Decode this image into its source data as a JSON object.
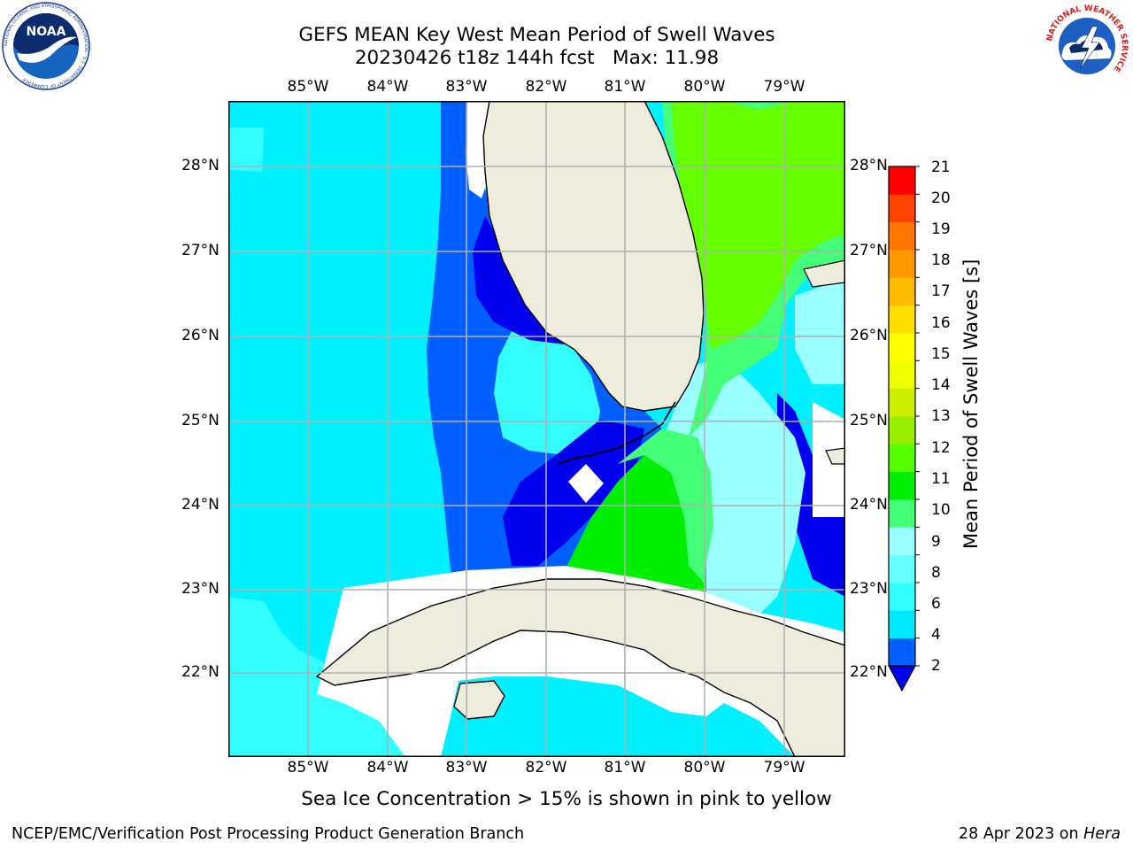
{
  "title": {
    "line1": "GEFS MEAN Key West Mean Period of Swell Waves",
    "line2": "20230426 t18z 144h fcst   Max: 11.98"
  },
  "map": {
    "lon_labels": [
      "85°W",
      "84°W",
      "83°W",
      "82°W",
      "81°W",
      "80°W",
      "79°W"
    ],
    "lat_labels": [
      "28°N",
      "27°N",
      "26°N",
      "25°N",
      "24°N",
      "23°N",
      "22°N"
    ],
    "land_color": "#eeecdc",
    "grid_color": "#b0b0b0"
  },
  "colorbar": {
    "label": "Mean Period of Swell Waves [s]",
    "ticks": [
      "2",
      "4",
      "6",
      "8",
      "9",
      "10",
      "11",
      "12",
      "13",
      "14",
      "15",
      "16",
      "17",
      "18",
      "19",
      "20",
      "21"
    ],
    "colors": [
      "#0060ff",
      "#00e8ff",
      "#33ffff",
      "#66ffff",
      "#99ffff",
      "#44ff77",
      "#00ee00",
      "#55ff00",
      "#99ee00",
      "#ccee00",
      "#eeff00",
      "#ffff00",
      "#ffdd00",
      "#ffbb00",
      "#ff9900",
      "#ff7700",
      "#ff4400",
      "#ff0000"
    ],
    "extend_color": "#0000ee"
  },
  "note": "Sea Ice Concentration > 15% is shown in pink to yellow",
  "footer": {
    "left": "NCEP/EMC/Verification Post Processing Product Generation Branch",
    "date": "28 Apr 2023 on ",
    "machine": "Hera"
  },
  "logos": {
    "noaa_text": "NOAA",
    "noaa_ring": "NATIONAL OCEANIC AND ATMOSPHERIC ADMINISTRATION · U.S. DEPARTMENT OF COMMERCE",
    "nws_ring": "NATIONAL WEATHER SERVICE"
  }
}
